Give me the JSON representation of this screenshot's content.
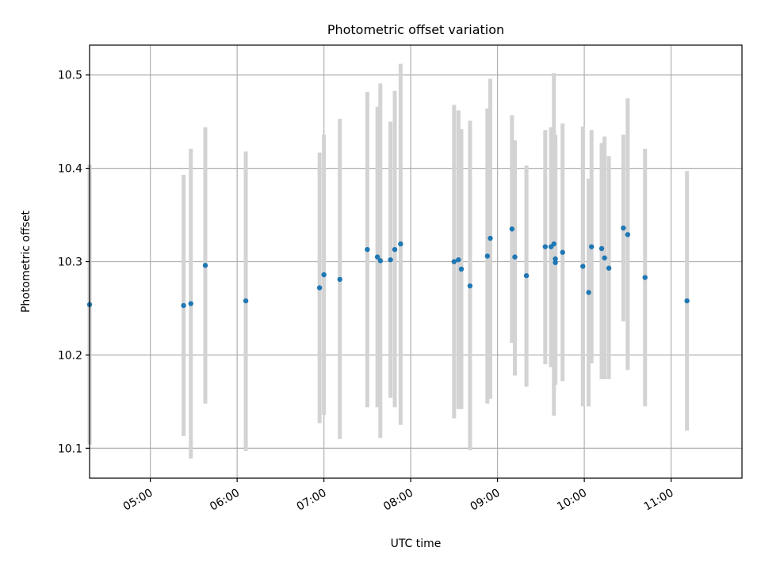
{
  "chart_data": {
    "type": "scatter",
    "title": "Photometric offset variation",
    "xlabel": "UTC time",
    "ylabel": "Photometric offset",
    "x_tick_labels": [
      "05:00",
      "06:00",
      "07:00",
      "08:00",
      "09:00",
      "10:00",
      "11:00"
    ],
    "y_tick_labels": [
      "10.1",
      "10.2",
      "10.3",
      "10.4",
      "10.5"
    ],
    "x_ticks": [
      "05:00",
      "06:00",
      "07:00",
      "08:00",
      "09:00",
      "10:00",
      "11:00"
    ],
    "y_ticks": [
      10.1,
      10.2,
      10.3,
      10.4,
      10.5
    ],
    "xlim": [
      "04:18",
      "11:49"
    ],
    "ylim": [
      10.068,
      10.532
    ],
    "grid": true,
    "colors": {
      "point": "#1f77b4",
      "errorbar": "#d3d3d3",
      "grid": "#b0b0b0"
    },
    "series": [
      {
        "points": [
          {
            "t": "04:18",
            "y": 10.254,
            "lo": 10.104,
            "hi": 10.404
          },
          {
            "t": "05:23",
            "y": 10.253,
            "lo": 10.113,
            "hi": 10.393
          },
          {
            "t": "05:28",
            "y": 10.255,
            "lo": 10.089,
            "hi": 10.421
          },
          {
            "t": "05:38",
            "y": 10.296,
            "lo": 10.148,
            "hi": 10.444
          },
          {
            "t": "06:06",
            "y": 10.258,
            "lo": 10.097,
            "hi": 10.418
          },
          {
            "t": "06:57",
            "y": 10.272,
            "lo": 10.127,
            "hi": 10.417
          },
          {
            "t": "07:00",
            "y": 10.286,
            "lo": 10.136,
            "hi": 10.436
          },
          {
            "t": "07:11",
            "y": 10.281,
            "lo": 10.11,
            "hi": 10.453
          },
          {
            "t": "07:30",
            "y": 10.313,
            "lo": 10.144,
            "hi": 10.482
          },
          {
            "t": "07:37",
            "y": 10.305,
            "lo": 10.144,
            "hi": 10.466
          },
          {
            "t": "07:39",
            "y": 10.301,
            "lo": 10.111,
            "hi": 10.491
          },
          {
            "t": "07:46",
            "y": 10.302,
            "lo": 10.154,
            "hi": 10.45
          },
          {
            "t": "07:49",
            "y": 10.313,
            "lo": 10.144,
            "hi": 10.483
          },
          {
            "t": "07:53",
            "y": 10.319,
            "lo": 10.125,
            "hi": 10.512
          },
          {
            "t": "08:30",
            "y": 10.3,
            "lo": 10.132,
            "hi": 10.468
          },
          {
            "t": "08:33",
            "y": 10.302,
            "lo": 10.142,
            "hi": 10.462
          },
          {
            "t": "08:35",
            "y": 10.292,
            "lo": 10.142,
            "hi": 10.442
          },
          {
            "t": "08:41",
            "y": 10.274,
            "lo": 10.098,
            "hi": 10.451
          },
          {
            "t": "08:53",
            "y": 10.306,
            "lo": 10.148,
            "hi": 10.464
          },
          {
            "t": "08:55",
            "y": 10.325,
            "lo": 10.153,
            "hi": 10.496
          },
          {
            "t": "09:10",
            "y": 10.335,
            "lo": 10.213,
            "hi": 10.457
          },
          {
            "t": "09:12",
            "y": 10.305,
            "lo": 10.178,
            "hi": 10.43
          },
          {
            "t": "09:20",
            "y": 10.285,
            "lo": 10.166,
            "hi": 10.403
          },
          {
            "t": "09:33",
            "y": 10.316,
            "lo": 10.19,
            "hi": 10.441
          },
          {
            "t": "09:37",
            "y": 10.316,
            "lo": 10.187,
            "hi": 10.444
          },
          {
            "t": "09:39",
            "y": 10.319,
            "lo": 10.135,
            "hi": 10.502
          },
          {
            "t": "09:40",
            "y": 10.299,
            "lo": 10.168,
            "hi": 10.431
          },
          {
            "t": "09:40",
            "y": 10.303,
            "lo": 10.17,
            "hi": 10.436
          },
          {
            "t": "09:45",
            "y": 10.31,
            "lo": 10.172,
            "hi": 10.448
          },
          {
            "t": "09:59",
            "y": 10.295,
            "lo": 10.145,
            "hi": 10.445
          },
          {
            "t": "10:03",
            "y": 10.267,
            "lo": 10.145,
            "hi": 10.389
          },
          {
            "t": "10:05",
            "y": 10.316,
            "lo": 10.191,
            "hi": 10.441
          },
          {
            "t": "10:12",
            "y": 10.314,
            "lo": 10.174,
            "hi": 10.427
          },
          {
            "t": "10:14",
            "y": 10.304,
            "lo": 10.174,
            "hi": 10.434
          },
          {
            "t": "10:17",
            "y": 10.293,
            "lo": 10.174,
            "hi": 10.413
          },
          {
            "t": "10:27",
            "y": 10.336,
            "lo": 10.236,
            "hi": 10.436
          },
          {
            "t": "10:30",
            "y": 10.329,
            "lo": 10.184,
            "hi": 10.475
          },
          {
            "t": "10:42",
            "y": 10.283,
            "lo": 10.145,
            "hi": 10.421
          },
          {
            "t": "11:11",
            "y": 10.258,
            "lo": 10.119,
            "hi": 10.397
          }
        ]
      }
    ]
  }
}
